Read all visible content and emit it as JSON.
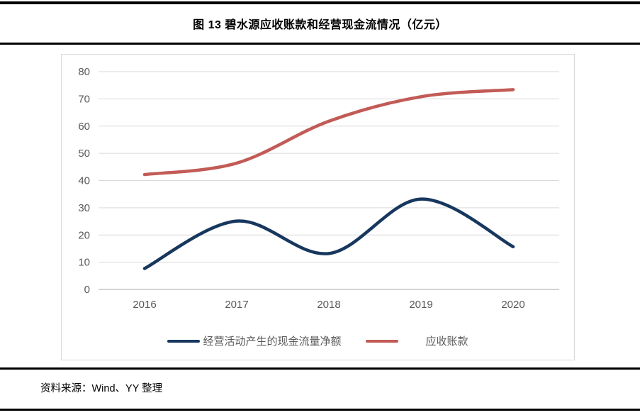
{
  "title": "图 13 碧水源应收账款和经营现金流情况（亿元）",
  "source_note": "资料来源：Wind、YY 整理",
  "colors": {
    "rule": "#000000",
    "chart_border": "#d9d9d9",
    "gridline": "#d9d9d9",
    "zero_axis": "#a6a6a6",
    "tick_label": "#595959",
    "legend_label": "#595959",
    "cash_flow_line": "#17375e",
    "receivables_line": "#c25b56"
  },
  "chart_data": {
    "type": "line",
    "smooth": true,
    "categories": [
      "2016",
      "2017",
      "2018",
      "2019",
      "2020"
    ],
    "series": [
      {
        "name": "经营活动产生的现金流量净额",
        "color": "#17375e",
        "values": [
          7.7,
          25.1,
          13.2,
          33.2,
          15.7
        ]
      },
      {
        "name": "应收账款",
        "color": "#c25b56",
        "values": [
          42.2,
          46.4,
          61.8,
          70.8,
          73.4
        ]
      }
    ],
    "title": "图 13 碧水源应收账款和经营现金流情况（亿元）",
    "xlabel": "",
    "ylabel": "",
    "ylim": [
      0,
      80
    ],
    "yticks": [
      0,
      10,
      20,
      30,
      40,
      50,
      60,
      70,
      80
    ],
    "grid": true,
    "legend_position": "bottom"
  }
}
